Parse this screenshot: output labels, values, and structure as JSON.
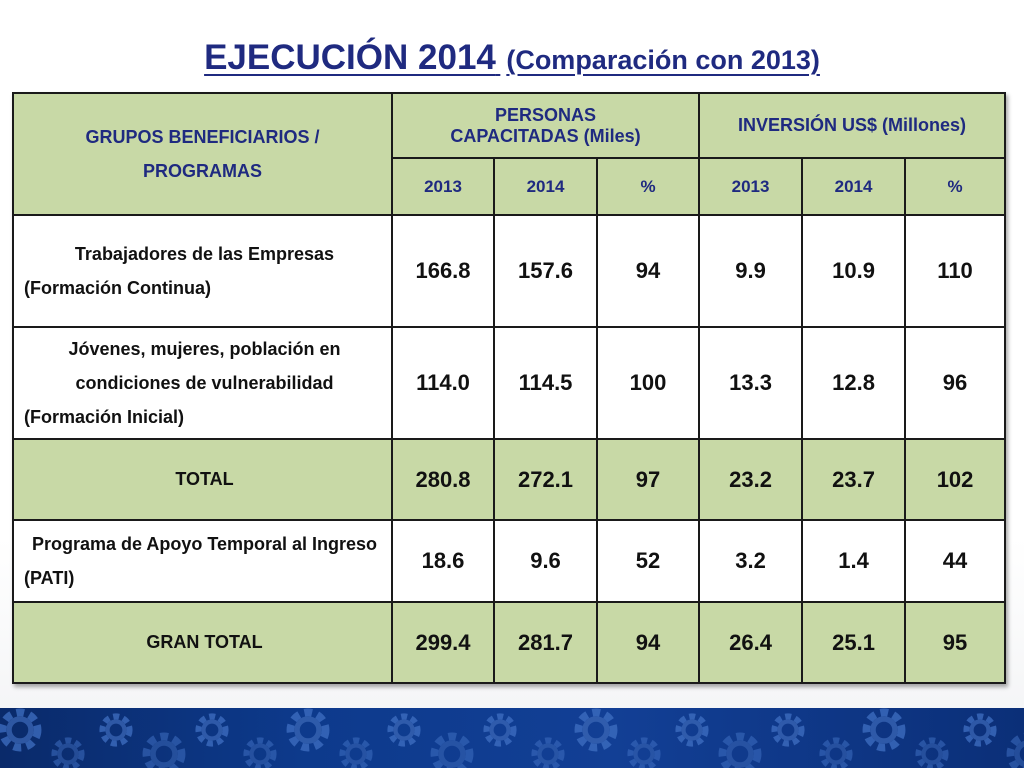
{
  "title": {
    "main": "EJECUCIÓN 2014",
    "sub": "(Comparación con 2013)"
  },
  "table": {
    "header": {
      "groups_line1": "GRUPOS BENEFICIARIOS /",
      "groups_line2": "PROGRAMAS",
      "personas": "PERSONAS CAPACITADAS (Miles)",
      "inversion": "INVERSIÓN US$ (Millones)",
      "years": [
        "2013",
        "2014",
        "%",
        "2013",
        "2014",
        "%"
      ]
    },
    "rows": [
      {
        "label": "Trabajadores de las Empresas (Formación Continua)",
        "values": [
          "166.8",
          "157.6",
          "94",
          "9.9",
          "10.9",
          "110"
        ],
        "style": "white"
      },
      {
        "label": "Jóvenes, mujeres, población en condiciones de vulnerabilidad (Formación Inicial)",
        "values": [
          "114.0",
          "114.5",
          "100",
          "13.3",
          "12.8",
          "96"
        ],
        "style": "white"
      },
      {
        "label": "TOTAL",
        "values": [
          "280.8",
          "272.1",
          "97",
          "23.2",
          "23.7",
          "102"
        ],
        "style": "green"
      },
      {
        "label": "Programa de Apoyo Temporal al Ingreso (PATI)",
        "values": [
          "18.6",
          "9.6",
          "52",
          "3.2",
          "1.4",
          "44"
        ],
        "style": "white"
      },
      {
        "label": "GRAN TOTAL",
        "values": [
          "299.4",
          "281.7",
          "94",
          "26.4",
          "25.1",
          "95"
        ],
        "style": "green"
      }
    ]
  },
  "colors": {
    "title": "#1f2a80",
    "header_bg": "#c8d9a6",
    "band": "#0d3a8c"
  },
  "icons": {
    "footer_decoration": "gear-icon"
  }
}
